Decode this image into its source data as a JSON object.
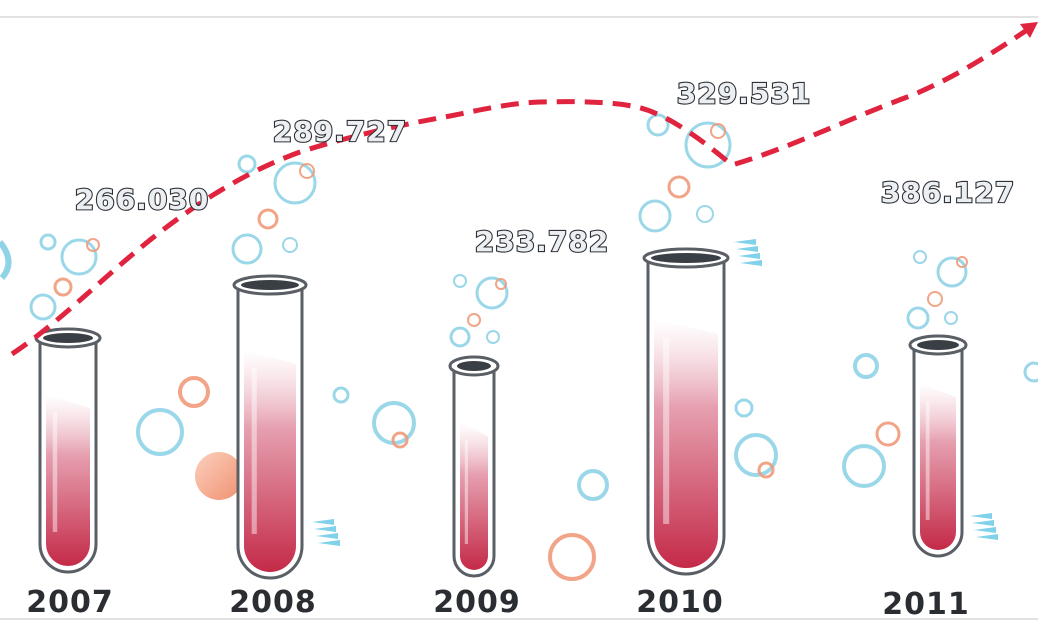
{
  "chart_data": {
    "type": "bar",
    "categories": [
      "2007",
      "2008",
      "2009",
      "2010",
      "2011"
    ],
    "values": [
      266030,
      289727,
      233782,
      329531,
      386127
    ],
    "value_labels": [
      "266.030",
      "289.727",
      "233.782",
      "329.531",
      "386.127"
    ],
    "title": "",
    "xlabel": "",
    "ylabel": "",
    "colors": {
      "liquid": "#c8304e",
      "trend_line": "#e0243f",
      "tube_outline": "#5a5f66",
      "bubble_blue": "#8fd3e6",
      "bubble_orange": "#f09a7a",
      "label_fill": "#eceff2",
      "label_stroke": "#2e3238"
    },
    "trend_line": {
      "style": "dashed",
      "arrow": "end"
    }
  }
}
